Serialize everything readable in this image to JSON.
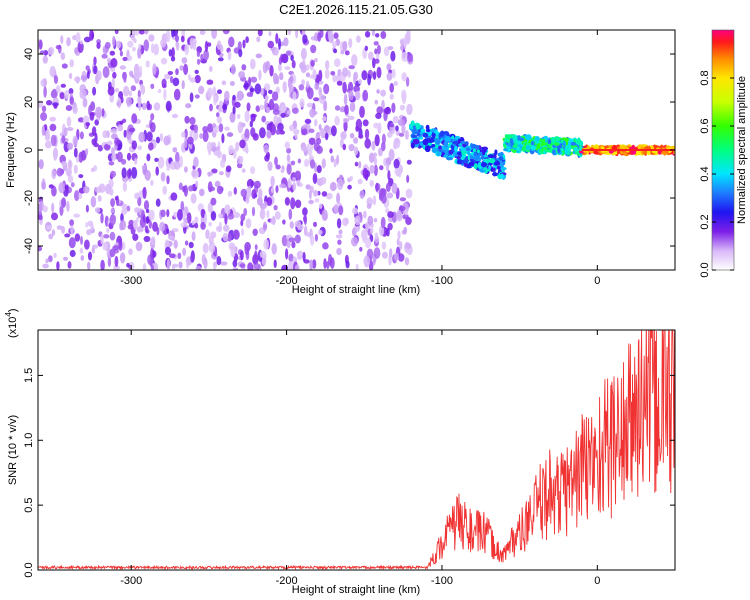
{
  "title": "C2E1.2026.115.21.05.G30",
  "chart_data": [
    {
      "type": "heatmap",
      "name": "spectrogram",
      "xlabel": "Height of straight line (km)",
      "ylabel": "Frequency (Hz)",
      "xlim": [
        -360,
        50
      ],
      "ylim": [
        -50,
        50
      ],
      "xticks": [
        "-300",
        "-200",
        "-100",
        "0"
      ],
      "xtick_values": [
        -300,
        -200,
        -100,
        0
      ],
      "yticks": [
        "-40",
        "-20",
        "0",
        "20",
        "40"
      ],
      "ytick_values": [
        -40,
        -20,
        0,
        20,
        40
      ],
      "colorbar": {
        "label": "Normalized spectral amplitude",
        "range": [
          0,
          1
        ],
        "ticks": [
          "0.0",
          "0.2",
          "0.4",
          "0.6",
          "0.8"
        ],
        "tick_values": [
          0.0,
          0.2,
          0.4,
          0.6,
          0.8
        ]
      },
      "regions": [
        {
          "desc": "diffuse noise",
          "x_range": [
            -360,
            -120
          ],
          "freq_range": [
            -50,
            50
          ],
          "amplitude": [
            0.0,
            0.15
          ]
        },
        {
          "desc": "signal band",
          "x_range": [
            -120,
            -60
          ],
          "freq_center": [
            7,
            -7
          ],
          "amplitude": [
            0.2,
            0.45
          ]
        },
        {
          "desc": "signal band",
          "x_range": [
            -60,
            -10
          ],
          "freq_center": [
            3,
            1
          ],
          "amplitude": [
            0.3,
            0.6
          ]
        },
        {
          "desc": "tone",
          "x_range": [
            -10,
            50
          ],
          "freq_center": [
            0,
            0
          ],
          "amplitude": [
            0.8,
            1.0
          ]
        }
      ]
    },
    {
      "type": "line",
      "name": "snr",
      "color": "#f03232",
      "xlabel": "Height of straight line (km)",
      "ylabel": "SNR (10 * v/v)",
      "scale_label": "(x10",
      "scale_exp": "4",
      "scale_close": ")",
      "xlim": [
        -360,
        50
      ],
      "ylim": [
        0,
        1.85
      ],
      "xticks": [
        "-300",
        "-200",
        "-100",
        "0"
      ],
      "xtick_values": [
        -300,
        -200,
        -100,
        0
      ],
      "yticks": [
        "0.0",
        "0.5",
        "1.0",
        "1.5"
      ],
      "ytick_values": [
        0.0,
        0.5,
        1.0,
        1.5
      ],
      "series": [
        {
          "name": "SNR",
          "x": [
            -360,
            -110,
            -105,
            -100,
            -95,
            -90,
            -85,
            -80,
            -75,
            -70,
            -65,
            -60,
            -55,
            -50,
            -45,
            -40,
            -35,
            -30,
            -25,
            -20,
            -15,
            -10,
            -5,
            0,
            5,
            10,
            15,
            20,
            25,
            30,
            35,
            40,
            45,
            50
          ],
          "y": [
            0.02,
            0.02,
            0.1,
            0.2,
            0.3,
            0.38,
            0.35,
            0.28,
            0.3,
            0.25,
            0.15,
            0.12,
            0.22,
            0.28,
            0.35,
            0.45,
            0.55,
            0.6,
            0.58,
            0.62,
            0.7,
            0.78,
            0.8,
            0.88,
            0.95,
            0.98,
            1.05,
            1.1,
            1.2,
            1.3,
            1.35,
            1.3,
            1.38,
            1.42
          ]
        }
      ]
    }
  ]
}
